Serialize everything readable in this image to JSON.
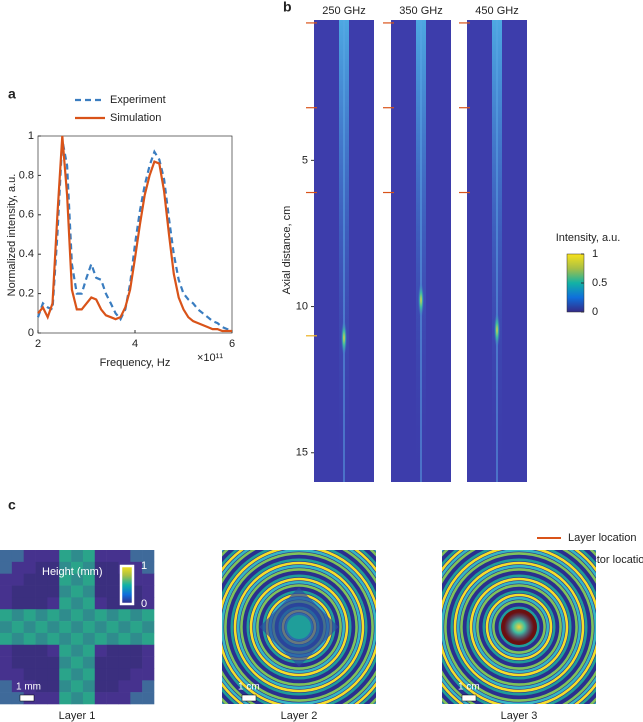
{
  "chart_data": [
    {
      "type": "line",
      "panel": "a",
      "xlabel": "Frequency, Hz",
      "ylabel": "Normalized intensity, a.u.",
      "x_multiplier": "×10¹¹",
      "x": [
        200000000000.0,
        210000000000.0,
        220000000000.0,
        230000000000.0,
        240000000000.0,
        250000000000.0,
        260000000000.0,
        270000000000.0,
        280000000000.0,
        290000000000.0,
        300000000000.0,
        310000000000.0,
        320000000000.0,
        330000000000.0,
        340000000000.0,
        350000000000.0,
        360000000000.0,
        370000000000.0,
        380000000000.0,
        390000000000.0,
        400000000000.0,
        410000000000.0,
        420000000000.0,
        430000000000.0,
        440000000000.0,
        450000000000.0,
        460000000000.0,
        470000000000.0,
        480000000000.0,
        490000000000.0,
        500000000000.0,
        510000000000.0,
        520000000000.0,
        530000000000.0,
        540000000000.0,
        550000000000.0,
        560000000000.0,
        570000000000.0,
        580000000000.0,
        590000000000.0,
        600000000000.0
      ],
      "series": [
        {
          "name": "Experiment",
          "color": "#3a7dc0",
          "dashed": true,
          "values": [
            0.08,
            0.15,
            0.13,
            0.12,
            0.5,
            0.98,
            0.85,
            0.35,
            0.2,
            0.2,
            0.28,
            0.35,
            0.28,
            0.27,
            0.2,
            0.15,
            0.1,
            0.07,
            0.12,
            0.25,
            0.45,
            0.62,
            0.75,
            0.85,
            0.92,
            0.88,
            0.78,
            0.58,
            0.4,
            0.27,
            0.2,
            0.17,
            0.15,
            0.12,
            0.1,
            0.08,
            0.06,
            0.05,
            0.03,
            0.02,
            0.01
          ]
        },
        {
          "name": "Simulation",
          "color": "#d95319",
          "dashed": false,
          "values": [
            0.1,
            0.13,
            0.08,
            0.15,
            0.6,
            1.0,
            0.7,
            0.22,
            0.12,
            0.12,
            0.15,
            0.18,
            0.17,
            0.12,
            0.09,
            0.08,
            0.07,
            0.08,
            0.13,
            0.22,
            0.38,
            0.55,
            0.7,
            0.8,
            0.87,
            0.86,
            0.72,
            0.5,
            0.3,
            0.18,
            0.12,
            0.08,
            0.06,
            0.05,
            0.04,
            0.03,
            0.02,
            0.02,
            0.01,
            0.01,
            0.01
          ]
        }
      ],
      "xlim": [
        200000000000.0,
        600000000000.0
      ],
      "xticks": [
        {
          "value": 200000000000.0,
          "label": "2"
        },
        {
          "value": 400000000000.0,
          "label": "4"
        },
        {
          "value": 600000000000.0,
          "label": "6"
        }
      ],
      "ylim": [
        0,
        1
      ],
      "yticks": [
        0,
        0.2,
        0.4,
        0.6,
        0.8,
        1
      ]
    },
    {
      "type": "heatmap",
      "panel": "b",
      "ylabel": "Axial distance, cm",
      "columns": [
        "250 GHz",
        "350 GHz",
        "450 GHz"
      ],
      "ylim": [
        0.2,
        16
      ],
      "yticks": [
        5,
        10,
        15
      ],
      "markers": [
        {
          "name": "Layer location",
          "color": "#d95319",
          "values": [
            0.3,
            3.2,
            6.1
          ]
        },
        {
          "name": "Detector location",
          "color": "#edb120",
          "values": [
            11.0
          ]
        }
      ],
      "colorbar": {
        "label": "Intensity, a.u.",
        "lim": [
          0,
          1
        ],
        "ticks": [
          0,
          0.5,
          1
        ]
      }
    },
    {
      "type": "image",
      "panel": "c",
      "images": [
        {
          "label": "Layer 1",
          "scale": "1 mm"
        },
        {
          "label": "Layer 2",
          "scale": "1 cm"
        },
        {
          "label": "Layer 3",
          "scale": "1 cm"
        }
      ],
      "colorbar": {
        "label": "Height (mm)",
        "lim": [
          0,
          1
        ],
        "ticks": [
          0,
          1
        ]
      }
    }
  ]
}
